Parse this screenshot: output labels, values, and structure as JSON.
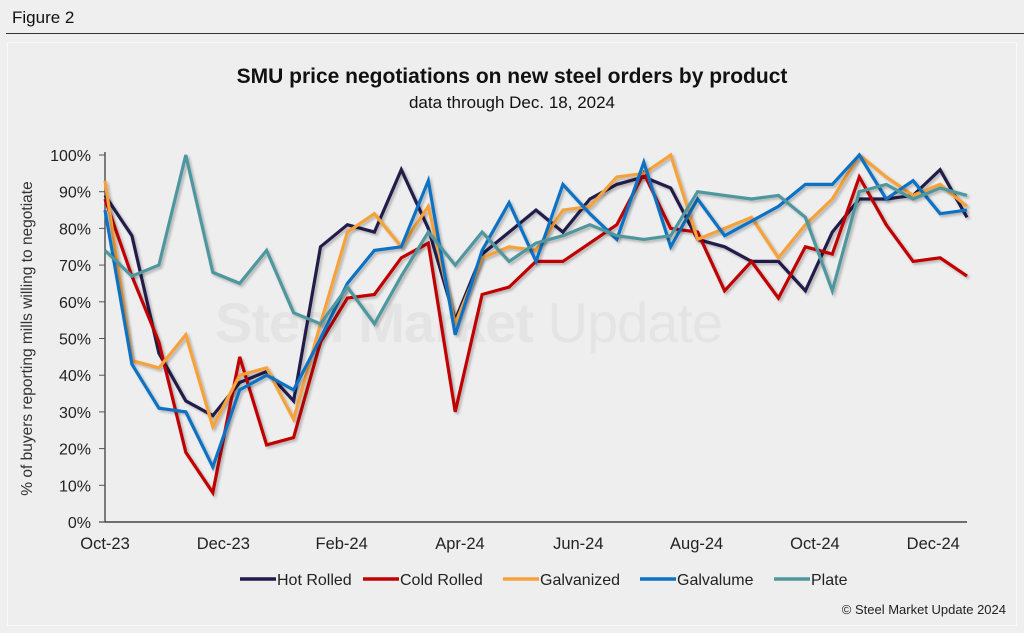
{
  "figure_label": "Figure 2",
  "credit": "© Steel Market Update 2024",
  "watermark": {
    "bold": "Steel Market",
    "light": " Update"
  },
  "chart_data": {
    "type": "line",
    "title": "SMU price negotiations on new steel orders by product",
    "subtitle": "data through Dec. 18, 2024",
    "xlabel": "",
    "ylabel": "% of buyers reporting mills willing to negotiate",
    "ylim": [
      0,
      100
    ],
    "yticks": [
      "0%",
      "10%",
      "20%",
      "30%",
      "40%",
      "50%",
      "60%",
      "70%",
      "80%",
      "90%",
      "100%"
    ],
    "xtick_labels": [
      "Oct-23",
      "Dec-23",
      "Feb-24",
      "Apr-24",
      "Jun-24",
      "Aug-24",
      "Oct-24",
      "Dec-24"
    ],
    "x_range_months": [
      0,
      14.57
    ],
    "xtick_months": [
      0,
      2,
      4,
      6,
      8,
      10,
      12,
      14
    ],
    "n_points": 33,
    "grid": false,
    "legend_position": "bottom",
    "series": [
      {
        "name": "Hot Rolled",
        "color": "#201a4a",
        "values": [
          89,
          78,
          46,
          33,
          29,
          38,
          41,
          33,
          75,
          81,
          79,
          96,
          80,
          55,
          73,
          79,
          85,
          79,
          88,
          92,
          94,
          91,
          77,
          75,
          71,
          71,
          63,
          79,
          88,
          88,
          89,
          96,
          83
        ]
      },
      {
        "name": "Cold Rolled",
        "color": "#c00000",
        "values": [
          88,
          67,
          49,
          19,
          8,
          45,
          21,
          23,
          49,
          61,
          62,
          72,
          76,
          30,
          62,
          64,
          71,
          71,
          76,
          81,
          95,
          80,
          79,
          63,
          71,
          61,
          75,
          73,
          94,
          81,
          71,
          72,
          67
        ]
      },
      {
        "name": "Galvanized",
        "color": "#f7a13b",
        "values": [
          93,
          44,
          42,
          51,
          26,
          40,
          42,
          28,
          54,
          79,
          84,
          75,
          86,
          54,
          72,
          75,
          74,
          85,
          86,
          94,
          95,
          100,
          77,
          80,
          83,
          72,
          81,
          88,
          100,
          94,
          89,
          92,
          86
        ]
      },
      {
        "name": "Galvalume",
        "color": "#0b72c4",
        "values": [
          85,
          43,
          31,
          30,
          15,
          36,
          40,
          36,
          50,
          65,
          74,
          75,
          93,
          51,
          74,
          87,
          71,
          92,
          84,
          77,
          98,
          75,
          88,
          78,
          82,
          86,
          92,
          92,
          100,
          88,
          93,
          84,
          85
        ]
      },
      {
        "name": "Plate",
        "color": "#4f979f",
        "values": [
          74,
          67,
          70,
          100,
          68,
          65,
          74,
          57,
          54,
          64,
          54,
          67,
          79,
          70,
          79,
          71,
          76,
          78,
          81,
          78,
          77,
          78,
          90,
          89,
          88,
          89,
          83,
          63,
          90,
          92,
          88,
          91,
          89
        ]
      }
    ]
  }
}
